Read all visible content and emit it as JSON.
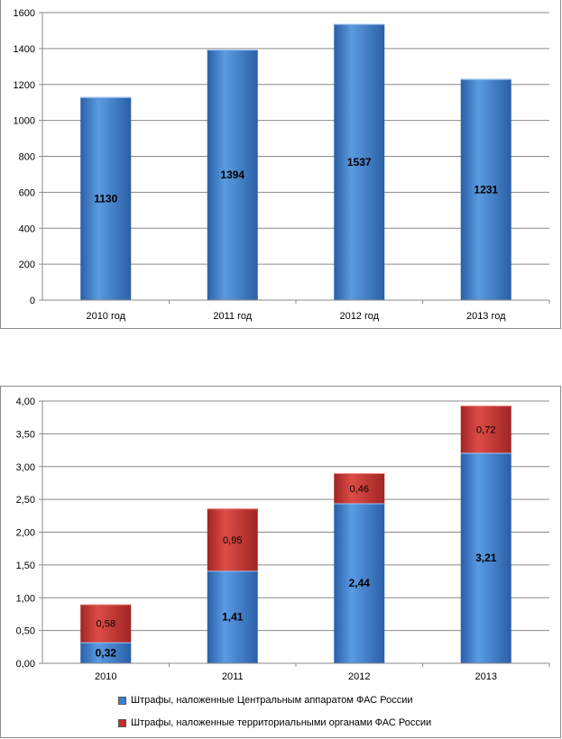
{
  "chart_data": [
    {
      "type": "bar",
      "categories": [
        "2010 год",
        "2011 год",
        "2012 год",
        "2013 год"
      ],
      "values": [
        1130,
        1394,
        1537,
        1231
      ],
      "data_labels": [
        "1130",
        "1394",
        "1537",
        "1231"
      ],
      "y_ticks": [
        "0",
        "200",
        "400",
        "600",
        "800",
        "1000",
        "1200",
        "1400",
        "1600"
      ],
      "ylim": [
        0,
        1600
      ],
      "grid": true,
      "colors": {
        "bar_light": "#5b9be0",
        "bar_dark": "#2a5fa8"
      }
    },
    {
      "type": "bar",
      "stacked": true,
      "categories": [
        "2010",
        "2011",
        "2012",
        "2013"
      ],
      "series": [
        {
          "name": "Штрафы, наложенные Центральным аппаратом ФАС России",
          "values": [
            0.32,
            1.41,
            2.44,
            3.21
          ],
          "labels": [
            "0,32",
            "1,41",
            "2,44",
            "3,21"
          ],
          "color": "#3f7fd2"
        },
        {
          "name": "Штрафы, наложенные территориальными органами ФАС России",
          "values": [
            0.58,
            0.95,
            0.46,
            0.72
          ],
          "labels": [
            "0,58",
            "0,95",
            "0,46",
            "0,72"
          ],
          "color": "#c0302e"
        }
      ],
      "y_ticks": [
        "0,00",
        "0,50",
        "1,00",
        "1,50",
        "2,00",
        "2,50",
        "3,00",
        "3,50",
        "4,00"
      ],
      "ylim": [
        0,
        4
      ],
      "grid": true,
      "legend_position": "bottom"
    }
  ]
}
